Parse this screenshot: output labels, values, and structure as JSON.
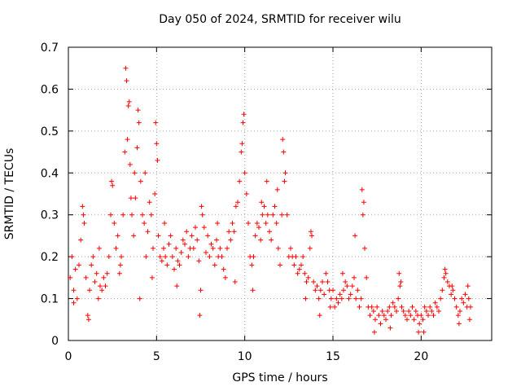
{
  "chart_data": {
    "type": "scatter",
    "title": "Day 050 of 2024, SRMTID for receiver wilu",
    "xlabel": "GPS time / hours",
    "ylabel": "SRMTID / TECUs",
    "xlim": [
      0,
      24
    ],
    "ylim": [
      0,
      0.7
    ],
    "xticks": [
      0,
      5,
      10,
      15,
      20
    ],
    "xtick_labels": [
      "0",
      "5",
      "10",
      "15",
      "20"
    ],
    "yticks": [
      0,
      0.1,
      0.2,
      0.3,
      0.4,
      0.5,
      0.6,
      0.7
    ],
    "ytick_labels": [
      "0",
      "0.1",
      "0.2",
      "0.3",
      "0.4",
      "0.5",
      "0.6",
      "0.7"
    ],
    "grid": true,
    "marker": "+",
    "series": [
      {
        "name": "SRMTID",
        "color": "#ff0000",
        "points": [
          [
            0.1,
            0.15
          ],
          [
            0.2,
            0.2
          ],
          [
            0.3,
            0.12
          ],
          [
            0.4,
            0.17
          ],
          [
            0.5,
            0.1
          ],
          [
            0.6,
            0.18
          ],
          [
            0.7,
            0.24
          ],
          [
            0.8,
            0.32
          ],
          [
            0.9,
            0.28
          ],
          [
            1.0,
            0.15
          ],
          [
            1.1,
            0.06
          ],
          [
            1.2,
            0.12
          ],
          [
            1.3,
            0.18
          ],
          [
            1.4,
            0.2
          ],
          [
            1.5,
            0.14
          ],
          [
            1.6,
            0.16
          ],
          [
            1.7,
            0.1
          ],
          [
            1.8,
            0.13
          ],
          [
            1.9,
            0.12
          ],
          [
            2.0,
            0.15
          ],
          [
            2.1,
            0.13
          ],
          [
            2.2,
            0.16
          ],
          [
            2.3,
            0.2
          ],
          [
            2.4,
            0.3
          ],
          [
            2.5,
            0.37
          ],
          [
            2.6,
            0.28
          ],
          [
            2.7,
            0.22
          ],
          [
            2.8,
            0.25
          ],
          [
            2.9,
            0.16
          ],
          [
            3.0,
            0.2
          ],
          [
            3.1,
            0.3
          ],
          [
            3.2,
            0.45
          ],
          [
            3.3,
            0.62
          ],
          [
            3.4,
            0.56
          ],
          [
            3.5,
            0.42
          ],
          [
            3.6,
            0.3
          ],
          [
            3.7,
            0.25
          ],
          [
            3.8,
            0.34
          ],
          [
            3.9,
            0.46
          ],
          [
            4.0,
            0.52
          ],
          [
            4.1,
            0.38
          ],
          [
            4.2,
            0.3
          ],
          [
            4.3,
            0.28
          ],
          [
            4.4,
            0.2
          ],
          [
            4.5,
            0.26
          ],
          [
            4.6,
            0.33
          ],
          [
            4.7,
            0.3
          ],
          [
            4.8,
            0.22
          ],
          [
            4.9,
            0.35
          ],
          [
            5.0,
            0.47
          ],
          [
            5.1,
            0.25
          ],
          [
            5.2,
            0.2
          ],
          [
            5.3,
            0.19
          ],
          [
            5.4,
            0.22
          ],
          [
            5.5,
            0.2
          ],
          [
            5.6,
            0.18
          ],
          [
            5.7,
            0.23
          ],
          [
            5.8,
            0.25
          ],
          [
            5.9,
            0.2
          ],
          [
            6.0,
            0.17
          ],
          [
            6.1,
            0.22
          ],
          [
            6.2,
            0.19
          ],
          [
            6.3,
            0.18
          ],
          [
            6.4,
            0.21
          ],
          [
            6.5,
            0.24
          ],
          [
            6.6,
            0.23
          ],
          [
            6.7,
            0.26
          ],
          [
            6.8,
            0.2
          ],
          [
            6.9,
            0.22
          ],
          [
            7.0,
            0.25
          ],
          [
            7.1,
            0.22
          ],
          [
            7.2,
            0.27
          ],
          [
            7.3,
            0.24
          ],
          [
            7.4,
            0.19
          ],
          [
            7.5,
            0.12
          ],
          [
            7.6,
            0.3
          ],
          [
            7.7,
            0.27
          ],
          [
            7.8,
            0.21
          ],
          [
            7.9,
            0.25
          ],
          [
            8.0,
            0.2
          ],
          [
            8.1,
            0.23
          ],
          [
            8.2,
            0.22
          ],
          [
            8.3,
            0.18
          ],
          [
            8.4,
            0.24
          ],
          [
            8.5,
            0.2
          ],
          [
            8.6,
            0.22
          ],
          [
            8.7,
            0.2
          ],
          [
            8.8,
            0.17
          ],
          [
            8.9,
            0.15
          ],
          [
            9.0,
            0.22
          ],
          [
            9.1,
            0.26
          ],
          [
            9.2,
            0.24
          ],
          [
            9.3,
            0.28
          ],
          [
            9.4,
            0.26
          ],
          [
            9.5,
            0.32
          ],
          [
            9.6,
            0.33
          ],
          [
            9.7,
            0.38
          ],
          [
            9.8,
            0.45
          ],
          [
            9.9,
            0.52
          ],
          [
            10.0,
            0.4
          ],
          [
            10.1,
            0.35
          ],
          [
            10.2,
            0.28
          ],
          [
            10.3,
            0.2
          ],
          [
            10.4,
            0.18
          ],
          [
            10.5,
            0.2
          ],
          [
            10.6,
            0.25
          ],
          [
            10.7,
            0.28
          ],
          [
            10.8,
            0.27
          ],
          [
            10.9,
            0.24
          ],
          [
            11.0,
            0.3
          ],
          [
            11.1,
            0.32
          ],
          [
            11.2,
            0.28
          ],
          [
            11.3,
            0.3
          ],
          [
            11.4,
            0.26
          ],
          [
            11.5,
            0.24
          ],
          [
            11.6,
            0.3
          ],
          [
            11.7,
            0.32
          ],
          [
            11.8,
            0.28
          ],
          [
            11.9,
            0.22
          ],
          [
            12.0,
            0.18
          ],
          [
            12.1,
            0.3
          ],
          [
            12.2,
            0.45
          ],
          [
            12.3,
            0.4
          ],
          [
            12.4,
            0.3
          ],
          [
            12.5,
            0.2
          ],
          [
            12.6,
            0.22
          ],
          [
            12.7,
            0.2
          ],
          [
            12.8,
            0.18
          ],
          [
            12.9,
            0.2
          ],
          [
            13.0,
            0.16
          ],
          [
            13.1,
            0.17
          ],
          [
            13.2,
            0.18
          ],
          [
            13.3,
            0.2
          ],
          [
            13.4,
            0.16
          ],
          [
            13.5,
            0.14
          ],
          [
            13.6,
            0.15
          ],
          [
            13.7,
            0.22
          ],
          [
            13.8,
            0.25
          ],
          [
            13.9,
            0.14
          ],
          [
            14.0,
            0.12
          ],
          [
            14.1,
            0.13
          ],
          [
            14.2,
            0.1
          ],
          [
            14.3,
            0.12
          ],
          [
            14.4,
            0.14
          ],
          [
            14.5,
            0.11
          ],
          [
            14.6,
            0.16
          ],
          [
            14.7,
            0.14
          ],
          [
            14.8,
            0.12
          ],
          [
            14.9,
            0.1
          ],
          [
            15.0,
            0.12
          ],
          [
            15.1,
            0.08
          ],
          [
            15.2,
            0.1
          ],
          [
            15.3,
            0.09
          ],
          [
            15.4,
            0.11
          ],
          [
            15.5,
            0.1
          ],
          [
            15.6,
            0.12
          ],
          [
            15.7,
            0.14
          ],
          [
            15.8,
            0.13
          ],
          [
            15.9,
            0.1
          ],
          [
            16.0,
            0.11
          ],
          [
            16.1,
            0.13
          ],
          [
            16.2,
            0.15
          ],
          [
            16.3,
            0.1
          ],
          [
            16.4,
            0.12
          ],
          [
            16.5,
            0.08
          ],
          [
            16.6,
            0.1
          ],
          [
            16.7,
            0.3
          ],
          [
            16.8,
            0.22
          ],
          [
            16.9,
            0.15
          ],
          [
            17.0,
            0.08
          ],
          [
            17.1,
            0.06
          ],
          [
            17.2,
            0.08
          ],
          [
            17.3,
            0.07
          ],
          [
            17.4,
            0.05
          ],
          [
            17.5,
            0.08
          ],
          [
            17.6,
            0.06
          ],
          [
            17.7,
            0.04
          ],
          [
            17.8,
            0.07
          ],
          [
            17.9,
            0.06
          ],
          [
            18.0,
            0.05
          ],
          [
            18.1,
            0.07
          ],
          [
            18.2,
            0.08
          ],
          [
            18.3,
            0.06
          ],
          [
            18.4,
            0.09
          ],
          [
            18.5,
            0.08
          ],
          [
            18.6,
            0.07
          ],
          [
            18.7,
            0.1
          ],
          [
            18.8,
            0.13
          ],
          [
            18.9,
            0.08
          ],
          [
            19.0,
            0.07
          ],
          [
            19.1,
            0.06
          ],
          [
            19.2,
            0.05
          ],
          [
            19.3,
            0.07
          ],
          [
            19.4,
            0.06
          ],
          [
            19.5,
            0.08
          ],
          [
            19.6,
            0.05
          ],
          [
            19.7,
            0.07
          ],
          [
            19.8,
            0.06
          ],
          [
            19.9,
            0.04
          ],
          [
            20.0,
            0.06
          ],
          [
            20.1,
            0.05
          ],
          [
            20.2,
            0.08
          ],
          [
            20.3,
            0.07
          ],
          [
            20.4,
            0.06
          ],
          [
            20.5,
            0.08
          ],
          [
            20.6,
            0.07
          ],
          [
            20.7,
            0.06
          ],
          [
            20.8,
            0.09
          ],
          [
            20.9,
            0.08
          ],
          [
            21.0,
            0.07
          ],
          [
            21.1,
            0.1
          ],
          [
            21.2,
            0.12
          ],
          [
            21.3,
            0.15
          ],
          [
            21.4,
            0.16
          ],
          [
            21.5,
            0.14
          ],
          [
            21.6,
            0.13
          ],
          [
            21.7,
            0.11
          ],
          [
            21.8,
            0.12
          ],
          [
            21.9,
            0.1
          ],
          [
            22.0,
            0.08
          ],
          [
            22.1,
            0.06
          ],
          [
            22.2,
            0.07
          ],
          [
            22.3,
            0.1
          ],
          [
            22.4,
            0.09
          ],
          [
            22.5,
            0.11
          ],
          [
            22.6,
            0.08
          ],
          [
            22.7,
            0.1
          ],
          [
            22.8,
            0.08
          ],
          [
            0.3,
            0.09
          ],
          [
            0.85,
            0.3
          ],
          [
            1.15,
            0.05
          ],
          [
            1.75,
            0.22
          ],
          [
            2.45,
            0.38
          ],
          [
            2.95,
            0.18
          ],
          [
            3.25,
            0.65
          ],
          [
            3.35,
            0.48
          ],
          [
            3.45,
            0.57
          ],
          [
            3.55,
            0.34
          ],
          [
            3.75,
            0.4
          ],
          [
            3.95,
            0.55
          ],
          [
            4.05,
            0.1
          ],
          [
            4.35,
            0.4
          ],
          [
            4.75,
            0.15
          ],
          [
            4.95,
            0.52
          ],
          [
            5.05,
            0.43
          ],
          [
            5.45,
            0.28
          ],
          [
            6.15,
            0.13
          ],
          [
            7.45,
            0.06
          ],
          [
            7.55,
            0.32
          ],
          [
            8.45,
            0.28
          ],
          [
            9.45,
            0.14
          ],
          [
            9.85,
            0.47
          ],
          [
            9.95,
            0.54
          ],
          [
            10.45,
            0.12
          ],
          [
            10.95,
            0.33
          ],
          [
            11.25,
            0.38
          ],
          [
            11.85,
            0.36
          ],
          [
            12.15,
            0.48
          ],
          [
            12.25,
            0.38
          ],
          [
            13.45,
            0.1
          ],
          [
            13.75,
            0.26
          ],
          [
            14.25,
            0.06
          ],
          [
            14.85,
            0.08
          ],
          [
            15.55,
            0.16
          ],
          [
            16.25,
            0.25
          ],
          [
            16.65,
            0.36
          ],
          [
            16.75,
            0.33
          ],
          [
            17.35,
            0.02
          ],
          [
            18.25,
            0.03
          ],
          [
            18.75,
            0.16
          ],
          [
            18.85,
            0.14
          ],
          [
            19.85,
            0.02
          ],
          [
            20.15,
            0.02
          ],
          [
            21.35,
            0.17
          ],
          [
            21.75,
            0.13
          ],
          [
            22.15,
            0.04
          ],
          [
            22.65,
            0.13
          ],
          [
            22.75,
            0.05
          ]
        ]
      }
    ]
  }
}
